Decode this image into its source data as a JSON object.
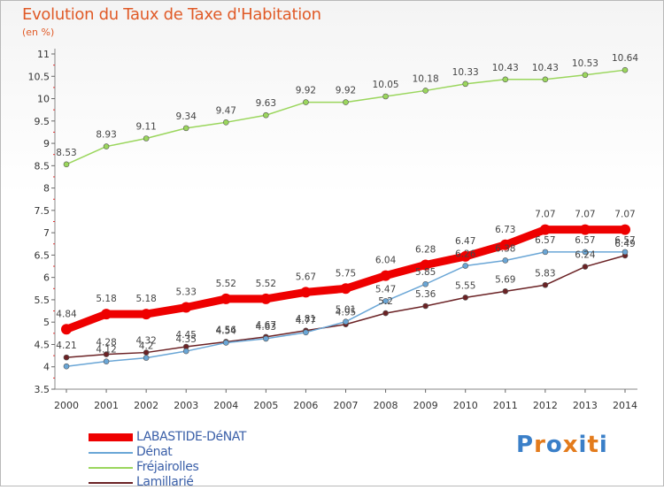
{
  "chart_data": {
    "type": "line",
    "title": "Evolution du Taux de Taxe d'Habitation",
    "subtitle": "(en %)",
    "x": [
      2000,
      2001,
      2002,
      2003,
      2004,
      2005,
      2006,
      2007,
      2008,
      2009,
      2010,
      2011,
      2012,
      2013,
      2014
    ],
    "ylim": [
      3.5,
      11
    ],
    "yticks": [
      "3.5",
      "4",
      "4.5",
      "5",
      "5.5",
      "6",
      "6.5",
      "7",
      "7.5",
      "8",
      "8.5",
      "9",
      "9.5",
      "10",
      "10.5",
      "11"
    ],
    "grid": false,
    "legend_position": "bottom-left",
    "series": [
      {
        "name": "LABASTIDE-DéNAT",
        "color": "#ee0000",
        "values": [
          4.84,
          5.18,
          5.18,
          5.33,
          5.52,
          5.52,
          5.67,
          5.75,
          6.04,
          6.28,
          6.47,
          6.73,
          7.07,
          7.07,
          7.07
        ],
        "labels": [
          "4.84",
          "5.18",
          "5.18",
          "5.33",
          "5.52",
          "5.52",
          "5.67",
          "5.75",
          "6.04",
          "6.28",
          "6.47",
          "6.73",
          "7.07",
          "7.07",
          "7.07"
        ]
      },
      {
        "name": "Dénat",
        "color": "#6aa6d6",
        "values": [
          4.01,
          4.12,
          4.2,
          4.35,
          4.54,
          4.63,
          4.77,
          5.01,
          5.47,
          5.85,
          6.26,
          6.38,
          6.57,
          6.57,
          6.57
        ],
        "labels": [
          "",
          "4.12",
          "4.2",
          "4.35",
          "4.54",
          "4.63",
          "4.77",
          "5.01",
          "5.47",
          "5.85",
          "6.26",
          "6.38",
          "6.57",
          "6.57",
          "6.57"
        ]
      },
      {
        "name": "Fréjairolles",
        "color": "#9ad65c",
        "values": [
          8.53,
          8.93,
          9.11,
          9.34,
          9.47,
          9.63,
          9.92,
          9.92,
          10.05,
          10.18,
          10.33,
          10.43,
          10.43,
          10.53,
          10.64
        ],
        "labels": [
          "8.53",
          "8.93",
          "9.11",
          "9.34",
          "9.47",
          "9.63",
          "9.92",
          "9.92",
          "10.05",
          "10.18",
          "10.33",
          "10.43",
          "10.43",
          "10.53",
          "10.64"
        ]
      },
      {
        "name": "Lamillarié",
        "color": "#6b2225",
        "values": [
          4.21,
          4.28,
          4.32,
          4.45,
          4.56,
          4.67,
          4.81,
          4.95,
          5.2,
          5.36,
          5.55,
          5.69,
          5.83,
          6.24,
          6.49
        ],
        "labels": [
          "4.21",
          "4.28",
          "4.32",
          "4.45",
          "4.56",
          "4.67",
          "4.81",
          "4.95",
          "5.2",
          "5.36",
          "5.55",
          "5.69",
          "5.83",
          "6.24",
          "6.49"
        ]
      }
    ]
  },
  "logo": {
    "letters": [
      "P",
      "r",
      "o",
      "x",
      "i",
      "t",
      "i"
    ],
    "colors": [
      "#3a7fc8",
      "#e37b1c",
      "#3a7fc8",
      "#e37b1c",
      "#3a7fc8",
      "#e37b1c",
      "#3a7fc8"
    ]
  }
}
